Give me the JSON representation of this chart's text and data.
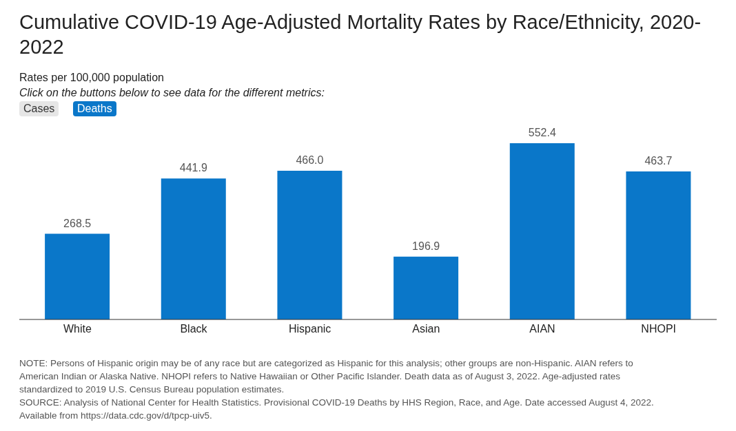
{
  "chart_data": {
    "type": "bar",
    "title": "Cumulative COVID-19 Age-Adjusted Mortality Rates by Race/Ethnicity, 2020-2022",
    "subtitle": "Rates per 100,000 population",
    "categories": [
      "White",
      "Black",
      "Hispanic",
      "Asian",
      "AIAN",
      "NHOPI"
    ],
    "values": [
      268.5,
      441.9,
      466.0,
      196.9,
      552.4,
      463.7
    ],
    "value_labels": [
      "268.5",
      "441.9",
      "466.0",
      "196.9",
      "552.4",
      "463.7"
    ],
    "color": "#0a77c9",
    "annotations": [
      "Click on the buttons below to see data for the different metrics:",
      "Cases",
      "Deaths",
      "NOTE: Persons of Hispanic origin may be of any race but are categorized as Hispanic for this analysis; other groups are non-Hispanic. AIAN refers to American Indian or Alaska Native. NHOPI refers to Native Hawaiian or Other Pacific Islander. Death data as of August 3, 2022. Age-adjusted rates standardized to 2019 U.S. Census Bureau population estimates.",
      "SOURCE: Analysis of National Center for Health Statistics. Provisional COVID-19 Deaths by HHS Region, Race, and Age. Date accessed August 4, 2022. Available from https://data.cdc.gov/d/tpcp-uiv5."
    ],
    "grid": false,
    "legend": false
  }
}
